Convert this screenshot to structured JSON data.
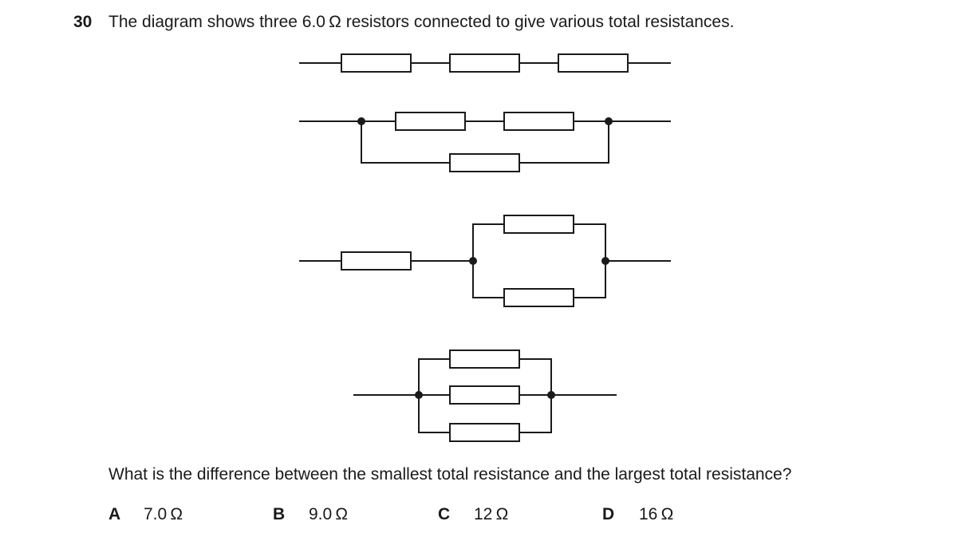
{
  "question": {
    "number": "30",
    "stem": "The diagram shows three 6.0 Ω resistors connected to give various total resistances.",
    "prompt": "What is the difference between the smallest total resistance and the largest total resistance?"
  },
  "options": [
    {
      "letter": "A",
      "value": "7.0 Ω"
    },
    {
      "letter": "B",
      "value": "9.0 Ω"
    },
    {
      "letter": "C",
      "value": "12 Ω"
    },
    {
      "letter": "D",
      "value": "16 Ω"
    }
  ],
  "diagram": {
    "circuits": [
      "three-in-series",
      "two-series-parallel-with-one",
      "one-series-with-two-parallel",
      "three-in-parallel"
    ]
  }
}
